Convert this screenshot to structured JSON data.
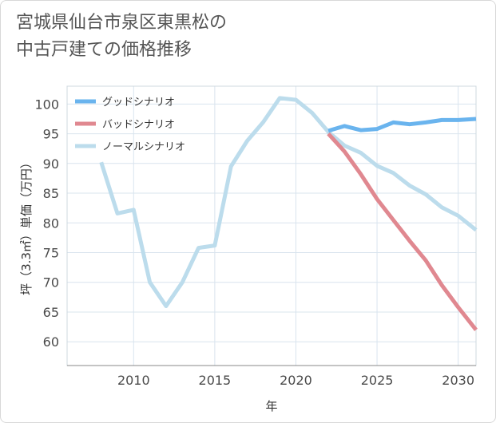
{
  "title": {
    "line1": "宮城県仙台市泉区東黒松の",
    "line2": "中古戸建ての価格推移"
  },
  "chart_data": {
    "type": "line",
    "xlabel": "年",
    "ylabel": "坪（3.3㎡）単価（万円）",
    "xlim": [
      2005.9,
      2031.1
    ],
    "ylim": [
      56,
      103
    ],
    "xticks": [
      2010,
      2015,
      2020,
      2025,
      2030
    ],
    "yticks": [
      60,
      65,
      70,
      75,
      80,
      85,
      90,
      95,
      100
    ],
    "grid": true,
    "legend_position": "top-left",
    "series": [
      {
        "name": "グッドシナリオ",
        "color": "#6ab4ee",
        "x": [
          2022,
          2023,
          2024,
          2025,
          2026,
          2027,
          2028,
          2029,
          2030,
          2031.1
        ],
        "y": [
          95.5,
          96.3,
          95.6,
          95.8,
          96.9,
          96.6,
          96.9,
          97.3,
          97.3,
          97.5
        ]
      },
      {
        "name": "バッドシナリオ",
        "color": "#e08890",
        "x": [
          2022,
          2023,
          2024,
          2025,
          2026,
          2027,
          2028,
          2029,
          2030,
          2031.1
        ],
        "y": [
          95.0,
          92.0,
          88.2,
          84.0,
          80.5,
          77.0,
          73.7,
          69.5,
          65.8,
          62.0
        ]
      },
      {
        "name": "ノーマルシナリオ",
        "color": "#bcdcec",
        "x": [
          2008,
          2009,
          2010,
          2011,
          2012,
          2013,
          2014,
          2015,
          2016,
          2017,
          2018,
          2019,
          2020,
          2021,
          2022,
          2023,
          2024,
          2025,
          2026,
          2027,
          2028,
          2029,
          2030,
          2031.1
        ],
        "y": [
          90.2,
          81.6,
          82.2,
          70.0,
          66.0,
          70.0,
          75.8,
          76.2,
          89.5,
          93.8,
          97.0,
          101.0,
          100.7,
          98.5,
          95.3,
          93.0,
          91.8,
          89.6,
          88.4,
          86.3,
          84.8,
          82.6,
          81.2,
          78.8
        ]
      }
    ]
  }
}
